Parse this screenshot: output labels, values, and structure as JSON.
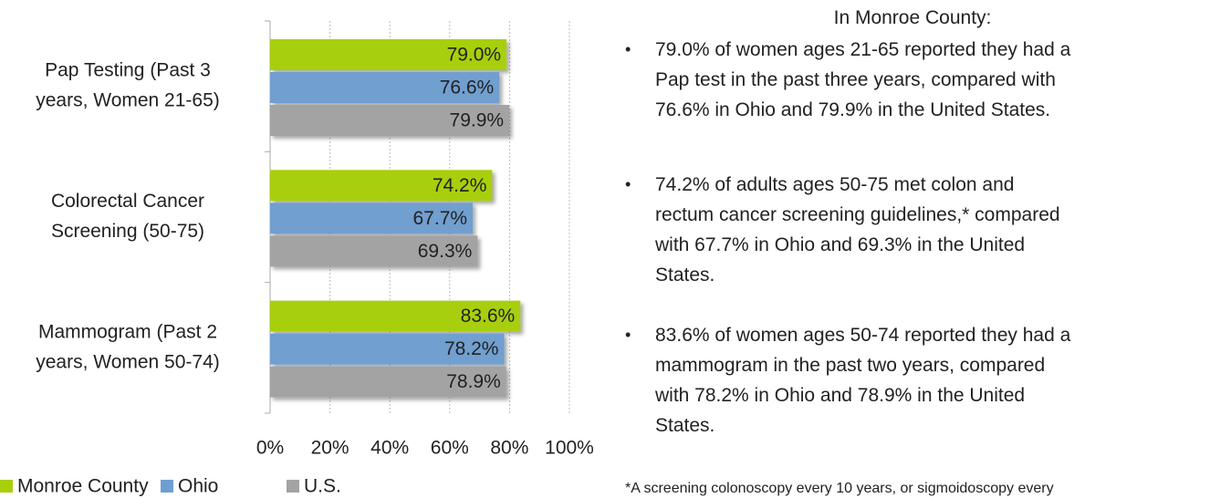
{
  "chart_data": {
    "type": "hbar",
    "categories": [
      [
        "Pap Testing (Past 3",
        "years, Women 21-65)"
      ],
      [
        "Colorectal Cancer",
        "Screening (50-75)"
      ],
      [
        "Mammogram (Past 2",
        "years, Women 50-74)"
      ]
    ],
    "series": [
      {
        "name": "Monroe County",
        "color": "#a8cf0c",
        "values": [
          79.0,
          74.2,
          83.6
        ],
        "value_labels": [
          "79.0%",
          "74.2%",
          "83.6%"
        ]
      },
      {
        "name": "Ohio",
        "color": "#6f9fd0",
        "values": [
          76.6,
          67.7,
          78.2
        ],
        "value_labels": [
          "76.6%",
          "67.7%",
          "78.2%"
        ]
      },
      {
        "name": "U.S.",
        "color": "#a3a3a3",
        "values": [
          79.9,
          69.3,
          78.9
        ],
        "value_labels": [
          "79.9%",
          "69.3%",
          "78.9%"
        ]
      }
    ],
    "xlim": [
      0,
      100
    ],
    "xticks": [
      {
        "value": 0,
        "label": "0%"
      },
      {
        "value": 20,
        "label": "20%"
      },
      {
        "value": 40,
        "label": "40%"
      },
      {
        "value": 60,
        "label": "60%"
      },
      {
        "value": 80,
        "label": "80%"
      },
      {
        "value": 100,
        "label": "100%"
      }
    ],
    "grid": true,
    "legend": "bottom"
  },
  "text_panel": {
    "heading": "In Monroe County:",
    "bullets": [
      [
        "79.0% of women ages 21-65 reported they had a",
        "Pap test in the past three years, compared with",
        "76.6% in Ohio and 79.9% in the United States."
      ],
      [
        "74.2% of adults ages 50-75 met colon and",
        "rectum cancer screening guidelines,* compared",
        "with 67.7% in Ohio and 69.3% in the United",
        "States."
      ],
      [
        "83.6% of women ages 50-74 reported they had a",
        "mammogram in the past two years, compared",
        "with 78.2% in Ohio and 78.9% in the United",
        "States."
      ]
    ],
    "footnote": "*A screening colonoscopy every 10 years, or sigmoidoscopy every"
  }
}
